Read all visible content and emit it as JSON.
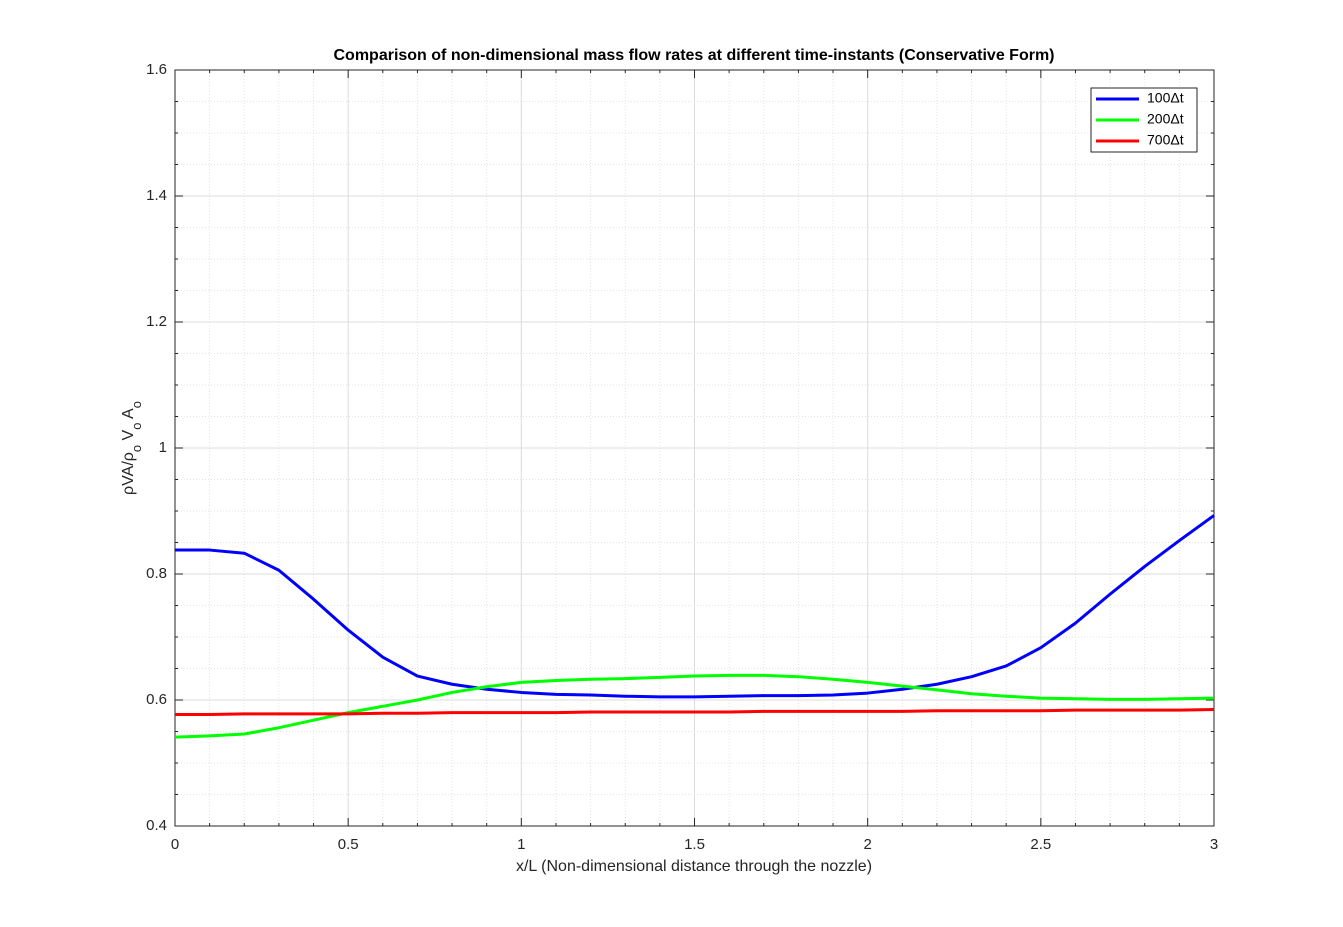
{
  "chart_data": {
    "type": "line",
    "title": "Comparison of non-dimensional mass flow rates at different time-instants (Conservative Form)",
    "x_label": "x/L (Non-dimensional distance through the nozzle)",
    "y_label": [
      "ρVA/ρ",
      "o",
      " V",
      "o",
      " A",
      "o"
    ],
    "x": [
      0,
      0.1,
      0.2,
      0.3,
      0.4,
      0.5,
      0.6,
      0.7,
      0.8,
      0.9,
      1,
      1.1,
      1.2,
      1.3,
      1.4,
      1.5,
      1.6,
      1.7,
      1.8,
      1.9,
      2,
      2.1,
      2.2,
      2.3,
      2.4,
      2.5,
      2.6,
      2.7,
      2.8,
      2.9,
      3
    ],
    "series": [
      {
        "name": "100Δt",
        "color": "#0000ff",
        "values": [
          0.838,
          0.838,
          0.833,
          0.806,
          0.76,
          0.711,
          0.668,
          0.638,
          0.625,
          0.617,
          0.612,
          0.609,
          0.608,
          0.606,
          0.605,
          0.605,
          0.606,
          0.607,
          0.607,
          0.608,
          0.611,
          0.617,
          0.625,
          0.637,
          0.654,
          0.683,
          0.722,
          0.768,
          0.812,
          0.853,
          0.893
        ]
      },
      {
        "name": "200Δt",
        "color": "#00ff00",
        "values": [
          0.541,
          0.543,
          0.546,
          0.556,
          0.568,
          0.58,
          0.59,
          0.6,
          0.612,
          0.621,
          0.628,
          0.631,
          0.633,
          0.634,
          0.636,
          0.638,
          0.639,
          0.639,
          0.637,
          0.633,
          0.628,
          0.622,
          0.616,
          0.61,
          0.606,
          0.603,
          0.602,
          0.601,
          0.601,
          0.602,
          0.603
        ]
      },
      {
        "name": "700Δt",
        "color": "#ff0000",
        "values": [
          0.577,
          0.577,
          0.578,
          0.578,
          0.578,
          0.578,
          0.579,
          0.579,
          0.58,
          0.58,
          0.58,
          0.58,
          0.581,
          0.581,
          0.581,
          0.581,
          0.581,
          0.582,
          0.582,
          0.582,
          0.582,
          0.582,
          0.583,
          0.583,
          0.583,
          0.583,
          0.584,
          0.584,
          0.584,
          0.584,
          0.585
        ]
      }
    ],
    "xlim": [
      0,
      3
    ],
    "xticks": [
      0,
      0.5,
      1,
      1.5,
      2,
      2.5,
      3
    ],
    "xminorticks": [
      0.1,
      0.2,
      0.3,
      0.4,
      0.6,
      0.7,
      0.8,
      0.9,
      1.1,
      1.2,
      1.3,
      1.4,
      1.6,
      1.7,
      1.8,
      1.9,
      2.1,
      2.2,
      2.3,
      2.4,
      2.6,
      2.7,
      2.8,
      2.9
    ],
    "ylim": [
      0.4,
      1.6
    ],
    "yticks": [
      0.4,
      0.6,
      0.8,
      1,
      1.2,
      1.4,
      1.6
    ],
    "yminorticks": [
      0.45,
      0.5,
      0.55,
      0.65,
      0.7,
      0.75,
      0.85,
      0.9,
      0.95,
      1.05,
      1.1,
      1.15,
      1.25,
      1.3,
      1.35,
      1.45,
      1.5,
      1.55
    ],
    "grid": true,
    "minor_grid": true,
    "legend_position": "northeast"
  }
}
